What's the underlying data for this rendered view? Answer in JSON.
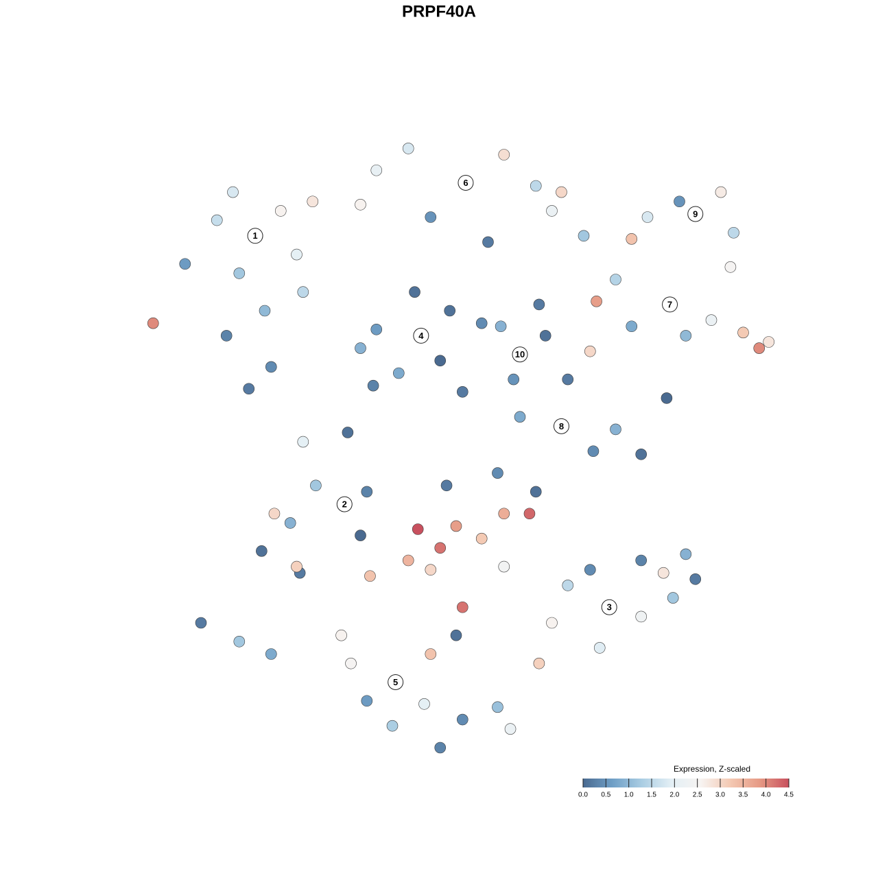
{
  "chart_data": {
    "type": "scatter",
    "title": "PRPF40A",
    "xlim": [
      -10,
      10
    ],
    "ylim": [
      -10,
      10
    ],
    "x": [
      -6.3,
      -7.5,
      -5.5,
      -6.8,
      -8.5,
      -5.0,
      -6.0,
      -7.2,
      -5.8,
      -7.0,
      -4.5,
      -9.5,
      -6.5,
      -4.8,
      0.3,
      -2.5,
      -1.5,
      1.5,
      2.5,
      -0.8,
      3.0,
      4.0,
      -3.0,
      1.0,
      3.3,
      7.5,
      6.0,
      8.3,
      5.5,
      8.7,
      7.0,
      8.6,
      6.7,
      5.0,
      4.4,
      8.0,
      9.0,
      9.5,
      7.2,
      5.5,
      9.8,
      4.2,
      -1.1,
      -2.5,
      -0.2,
      -1.8,
      -0.5,
      -2.6,
      0.8,
      -1.3,
      0.2,
      -3.0,
      2.0,
      1.4,
      2.8,
      1.8,
      2.6,
      3.3,
      2.0,
      5.0,
      5.8,
      4.3,
      3.5,
      6.6,
      -4.8,
      -3.4,
      -3.5,
      -6.1,
      -5.2,
      -4.9,
      -5.7,
      -2.8,
      -4.4,
      -3.0,
      -5.0,
      -8.0,
      -6.8,
      -5.8,
      -0.5,
      -1.2,
      0.0,
      -1.5,
      0.8,
      -0.8,
      1.5,
      2.3,
      0.2,
      -2.7,
      1.5,
      -0.3,
      1.3,
      2.5,
      4.8,
      3.5,
      5.8,
      6.5,
      7.2,
      4.5,
      3.0,
      5.8,
      2.6,
      6.8,
      4.2,
      7.5,
      -1.9,
      -3.3,
      -0.8,
      -2.0,
      0.2,
      -1.0,
      1.3,
      -2.8,
      0.0,
      -3.6,
      -0.5,
      1.7
    ],
    "y": [
      6.4,
      6.9,
      7.2,
      5.2,
      5.5,
      5.8,
      4.0,
      3.2,
      2.2,
      7.8,
      7.5,
      3.6,
      1.5,
      4.6,
      8.1,
      8.5,
      9.2,
      9.0,
      8.0,
      7.0,
      7.2,
      6.4,
      7.4,
      6.2,
      7.8,
      7.1,
      7.0,
      7.8,
      6.3,
      6.5,
      7.5,
      5.4,
      4.2,
      5.0,
      4.3,
      3.7,
      3.3,
      2.8,
      3.2,
      3.5,
      3.0,
      2.7,
      3.2,
      3.4,
      4.0,
      2.0,
      2.4,
      1.6,
      3.6,
      4.6,
      1.4,
      2.8,
      2.6,
      3.5,
      3.2,
      1.8,
      4.2,
      0.3,
      0.6,
      0.2,
      -0.6,
      -0.5,
      1.8,
      1.2,
      -0.2,
      0.1,
      -2.2,
      -3.7,
      -2.8,
      -4.4,
      -2.5,
      -1.8,
      -1.6,
      -3.2,
      -4.2,
      -6.0,
      -6.6,
      -7.0,
      -3.6,
      -3.0,
      -2.9,
      -4.0,
      -3.3,
      -4.3,
      -2.5,
      -2.5,
      -5.5,
      -4.5,
      -4.2,
      -1.6,
      -1.2,
      -1.8,
      -5.5,
      -4.8,
      -4.0,
      -4.4,
      -3.8,
      -6.8,
      -6.0,
      -5.8,
      -7.3,
      -5.2,
      -4.3,
      -4.6,
      -7.9,
      -7.3,
      -7.0,
      -9.3,
      -9.1,
      -8.6,
      -8.7,
      -8.5,
      -6.4,
      -6.4,
      -10.0,
      -9.4
    ],
    "values": [
      2.2,
      1.6,
      2.6,
      1.2,
      0.6,
      2.0,
      1.0,
      0.3,
      0.4,
      1.8,
      2.8,
      4.0,
      0.2,
      1.5,
      2.4,
      2.1,
      1.8,
      2.9,
      1.5,
      0.5,
      2.2,
      1.2,
      2.6,
      0.2,
      3.0,
      2.4,
      1.8,
      2.7,
      3.3,
      1.5,
      0.5,
      2.5,
      2.5,
      1.4,
      3.8,
      2.2,
      3.2,
      4.0,
      1.0,
      0.8,
      2.8,
      3.0,
      0.2,
      0.6,
      0.1,
      0.8,
      0.0,
      0.3,
      0.4,
      0.1,
      0.2,
      0.9,
      0.3,
      0.9,
      0.1,
      0.5,
      0.2,
      0.3,
      0.8,
      0.9,
      0.1,
      0.4,
      0.2,
      0.0,
      2.0,
      0.1,
      0.5,
      0.1,
      0.9,
      0.2,
      3.0,
      0.3,
      1.2,
      0.0,
      3.1,
      0.2,
      1.2,
      0.8,
      4.2,
      4.5,
      3.8,
      3.5,
      3.2,
      3.0,
      3.6,
      4.3,
      4.2,
      3.3,
      2.4,
      0.2,
      0.4,
      0.1,
      2.1,
      1.5,
      0.3,
      2.8,
      0.9,
      1.9,
      2.6,
      2.3,
      3.1,
      1.2,
      0.4,
      0.2,
      1.8,
      2.5,
      3.3,
      1.3,
      0.4,
      2.0,
      1.1,
      0.6,
      0.1,
      2.6,
      0.3,
      2.2
    ],
    "labels": [
      {
        "text": "1",
        "x": -6.3,
        "y": 6.4
      },
      {
        "text": "2",
        "x": -3.5,
        "y": -2.2
      },
      {
        "text": "3",
        "x": 4.8,
        "y": -5.5
      },
      {
        "text": "4",
        "x": -1.1,
        "y": 3.2
      },
      {
        "text": "5",
        "x": -1.9,
        "y": -7.9
      },
      {
        "text": "6",
        "x": 0.3,
        "y": 8.1
      },
      {
        "text": "7",
        "x": 6.7,
        "y": 4.2
      },
      {
        "text": "8",
        "x": 3.3,
        "y": 0.3
      },
      {
        "text": "9",
        "x": 7.5,
        "y": 7.1
      },
      {
        "text": "10",
        "x": 2.0,
        "y": 2.6
      }
    ],
    "colorbar": {
      "title": "Expression, Z-scaled",
      "lim": [
        0,
        4.5
      ],
      "colors": [
        "#4a6a90",
        "#6f9fc6",
        "#aacde3",
        "#e3eff5",
        "#f7f4f2",
        "#f4c9b3",
        "#e69a85",
        "#c8505e"
      ],
      "ticks": [
        {
          "value": 0,
          "label": "0.0"
        },
        0.5,
        {
          "value": 1,
          "label": "1.0"
        },
        1.5,
        {
          "value": 2,
          "label": "2.0"
        },
        2.5,
        {
          "value": 3,
          "label": "3.0"
        },
        3.5,
        {
          "value": 4,
          "label": "4.0"
        },
        4.5
      ]
    }
  }
}
